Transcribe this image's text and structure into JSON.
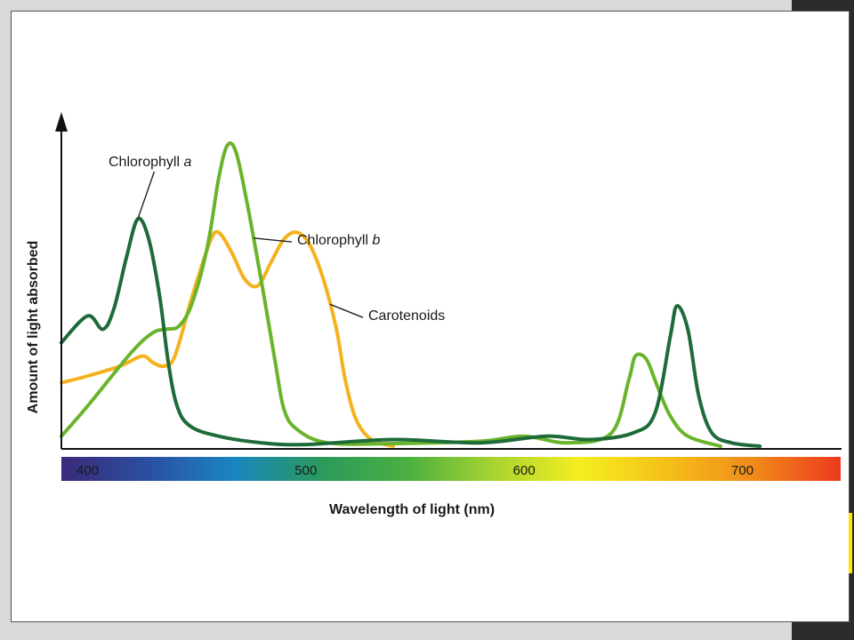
{
  "chart_data": {
    "type": "line",
    "xlabel": "Wavelength of light (nm)",
    "ylabel": "Amount of light absorbed",
    "xlim": [
      388,
      745
    ],
    "ylim": [
      0,
      100
    ],
    "x_ticks": [
      400,
      500,
      600,
      700
    ],
    "colors": {
      "chlorophyll_a": "#1e6b3a",
      "chlorophyll_b": "#6ab42c",
      "carotenoids": "#f5b21f",
      "axis": "#111111"
    },
    "spectrum_stops": [
      "#3b2a7a",
      "#2b4fa0",
      "#1a86c0",
      "#2a9a5a",
      "#4ab040",
      "#a8d430",
      "#f5ee20",
      "#f5c018",
      "#f08a1a",
      "#ec3a1e"
    ],
    "series": [
      {
        "name": "Chlorophyll a",
        "name_main": "Chlorophyll ",
        "name_italic": "a",
        "key": "chlorophyll_a",
        "label_anchor_x": 423,
        "points": [
          [
            388,
            31
          ],
          [
            400,
            39
          ],
          [
            407,
            35
          ],
          [
            412,
            41
          ],
          [
            418,
            57
          ],
          [
            423,
            68
          ],
          [
            428,
            62
          ],
          [
            433,
            45
          ],
          [
            437,
            25
          ],
          [
            441,
            12
          ],
          [
            447,
            6
          ],
          [
            460,
            3
          ],
          [
            480,
            1
          ],
          [
            500,
            0.5
          ],
          [
            540,
            2
          ],
          [
            580,
            1
          ],
          [
            610,
            3
          ],
          [
            630,
            2
          ],
          [
            650,
            4
          ],
          [
            660,
            10
          ],
          [
            667,
            33
          ],
          [
            670,
            42
          ],
          [
            675,
            35
          ],
          [
            680,
            15
          ],
          [
            686,
            4
          ],
          [
            695,
            1
          ],
          [
            708,
            0
          ]
        ]
      },
      {
        "name": "Chlorophyll b",
        "name_main": "Chlorophyll ",
        "name_italic": "b",
        "key": "chlorophyll_b",
        "label_anchor_x": 476,
        "points": [
          [
            388,
            3
          ],
          [
            400,
            12
          ],
          [
            420,
            28
          ],
          [
            430,
            34
          ],
          [
            436,
            35
          ],
          [
            442,
            36
          ],
          [
            448,
            43
          ],
          [
            455,
            60
          ],
          [
            460,
            80
          ],
          [
            464,
            90
          ],
          [
            468,
            88
          ],
          [
            473,
            73
          ],
          [
            480,
            48
          ],
          [
            486,
            25
          ],
          [
            490,
            11
          ],
          [
            496,
            5
          ],
          [
            510,
            1
          ],
          [
            540,
            0.8
          ],
          [
            580,
            1.5
          ],
          [
            600,
            3
          ],
          [
            620,
            1
          ],
          [
            640,
            4
          ],
          [
            648,
            20
          ],
          [
            651,
            27
          ],
          [
            656,
            26
          ],
          [
            661,
            18
          ],
          [
            667,
            9
          ],
          [
            675,
            3
          ],
          [
            690,
            0
          ]
        ]
      },
      {
        "name": "Carotenoids",
        "name_main": "Carotenoids",
        "name_italic": "",
        "key": "carotenoids",
        "label_anchor_x": 511,
        "points": [
          [
            388,
            19
          ],
          [
            400,
            21
          ],
          [
            415,
            24
          ],
          [
            425,
            27
          ],
          [
            430,
            25
          ],
          [
            435,
            24
          ],
          [
            440,
            27
          ],
          [
            448,
            45
          ],
          [
            456,
            61
          ],
          [
            460,
            64
          ],
          [
            466,
            58
          ],
          [
            472,
            50
          ],
          [
            478,
            48
          ],
          [
            484,
            55
          ],
          [
            490,
            62
          ],
          [
            496,
            64
          ],
          [
            502,
            60
          ],
          [
            508,
            50
          ],
          [
            514,
            35
          ],
          [
            518,
            20
          ],
          [
            523,
            8
          ],
          [
            530,
            2
          ],
          [
            540,
            0
          ]
        ]
      }
    ]
  }
}
